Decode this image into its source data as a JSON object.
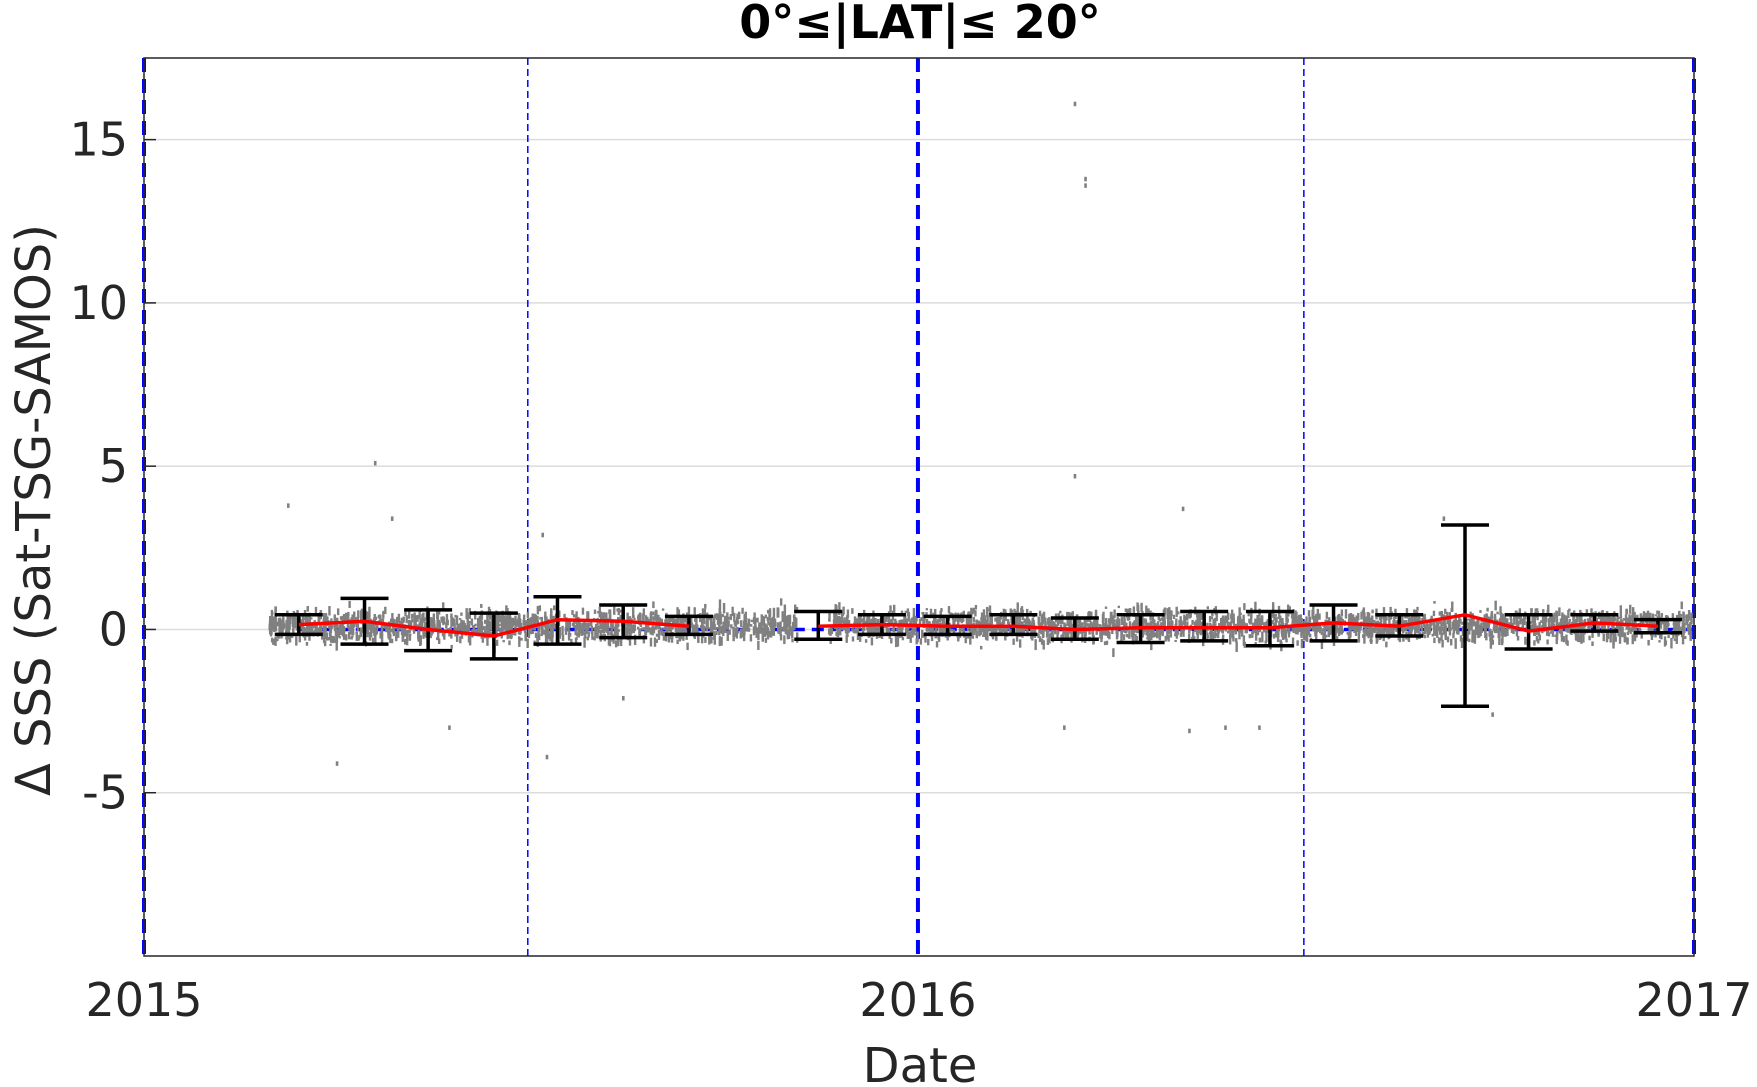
{
  "chart_data": {
    "type": "scatter",
    "title": "0°≤|LAT|≤ 20°",
    "xlabel": "Date",
    "ylabel": "Δ SSS (Sat-TSG-SAMOS)",
    "xlim": [
      "2015-01-01",
      "2017-01-01"
    ],
    "ylim": [
      -10,
      17.5
    ],
    "x_ticks": [
      {
        "date": "2015-01-01",
        "label": "2015"
      },
      {
        "date": "2016-01-01",
        "label": "2016"
      },
      {
        "date": "2017-01-01",
        "label": "2017"
      }
    ],
    "y_ticks": [
      {
        "value": -5,
        "label": "-5"
      },
      {
        "value": 0,
        "label": "0"
      },
      {
        "value": 5,
        "label": "5"
      },
      {
        "value": 10,
        "label": "10"
      },
      {
        "value": 15,
        "label": "15"
      }
    ],
    "grid": "horizontal",
    "colors": {
      "scatter": "#808080",
      "mean_line": "#ff0000",
      "error_bars": "#000000",
      "reference_lines": "#0000ff",
      "grid": "#dcdcdc",
      "axes": "#262626"
    },
    "reference_lines": {
      "zero_line": 0,
      "year_boundaries": [
        "2015-01-01",
        "2016-01-01",
        "2017-01-01"
      ],
      "half_year_lines": [
        "2015-07-01",
        "2016-07-01"
      ]
    },
    "scatter_segments": [
      {
        "start": "2015-03-01",
        "end": "2015-11-05",
        "center": 0.1,
        "spread": 0.45
      },
      {
        "start": "2015-11-20",
        "end": "2016-12-31",
        "center": 0.1,
        "spread": 0.45
      }
    ],
    "scatter_outliers": [
      {
        "date": "2015-04-20",
        "value": 5.1
      },
      {
        "date": "2015-03-10",
        "value": 3.8
      },
      {
        "date": "2015-04-02",
        "value": -4.1
      },
      {
        "date": "2015-04-28",
        "value": 3.4
      },
      {
        "date": "2015-05-25",
        "value": -3.0
      },
      {
        "date": "2015-07-08",
        "value": 2.9
      },
      {
        "date": "2015-07-10",
        "value": -3.9
      },
      {
        "date": "2015-08-15",
        "value": -2.1
      },
      {
        "date": "2016-03-15",
        "value": 16.1
      },
      {
        "date": "2016-03-20",
        "value": 13.8
      },
      {
        "date": "2016-03-20",
        "value": 13.6
      },
      {
        "date": "2016-03-15",
        "value": 4.7
      },
      {
        "date": "2016-05-05",
        "value": 3.7
      },
      {
        "date": "2016-05-08",
        "value": -3.1
      },
      {
        "date": "2016-05-25",
        "value": -3.0
      },
      {
        "date": "2016-03-10",
        "value": -3.0
      },
      {
        "date": "2016-06-10",
        "value": -3.0
      },
      {
        "date": "2016-09-05",
        "value": 3.4
      },
      {
        "date": "2016-09-28",
        "value": -2.6
      }
    ],
    "monthly_stats": [
      {
        "date": "2015-03-15",
        "mean": 0.15,
        "low": -0.15,
        "high": 0.45
      },
      {
        "date": "2015-04-15",
        "mean": 0.25,
        "low": -0.45,
        "high": 0.95
      },
      {
        "date": "2015-05-15",
        "mean": 0.0,
        "low": -0.65,
        "high": 0.6
      },
      {
        "date": "2015-06-15",
        "mean": -0.2,
        "low": -0.9,
        "high": 0.5
      },
      {
        "date": "2015-07-15",
        "mean": 0.3,
        "low": -0.45,
        "high": 1.0
      },
      {
        "date": "2015-08-15",
        "mean": 0.25,
        "low": -0.25,
        "high": 0.75
      },
      {
        "date": "2015-09-15",
        "mean": 0.1,
        "low": -0.15,
        "high": 0.4
      },
      {
        "date": "2015-11-15",
        "mean": 0.1,
        "low": -0.3,
        "high": 0.55
      },
      {
        "date": "2015-12-15",
        "mean": 0.15,
        "low": -0.15,
        "high": 0.45
      },
      {
        "date": "2016-01-15",
        "mean": 0.1,
        "low": -0.15,
        "high": 0.4
      },
      {
        "date": "2016-02-15",
        "mean": 0.1,
        "low": -0.15,
        "high": 0.45
      },
      {
        "date": "2016-03-15",
        "mean": 0.0,
        "low": -0.3,
        "high": 0.35
      },
      {
        "date": "2016-04-15",
        "mean": 0.05,
        "low": -0.4,
        "high": 0.45
      },
      {
        "date": "2016-05-15",
        "mean": 0.05,
        "low": -0.35,
        "high": 0.55
      },
      {
        "date": "2016-06-15",
        "mean": 0.05,
        "low": -0.5,
        "high": 0.55
      },
      {
        "date": "2016-07-15",
        "mean": 0.2,
        "low": -0.35,
        "high": 0.75
      },
      {
        "date": "2016-08-15",
        "mean": 0.1,
        "low": -0.2,
        "high": 0.45
      },
      {
        "date": "2016-09-15",
        "mean": 0.45,
        "low": -2.35,
        "high": 3.2
      },
      {
        "date": "2016-10-15",
        "mean": -0.05,
        "low": -0.6,
        "high": 0.45
      },
      {
        "date": "2016-11-15",
        "mean": 0.2,
        "low": -0.05,
        "high": 0.45
      },
      {
        "date": "2016-12-15",
        "mean": 0.1,
        "low": -0.1,
        "high": 0.3
      }
    ]
  }
}
